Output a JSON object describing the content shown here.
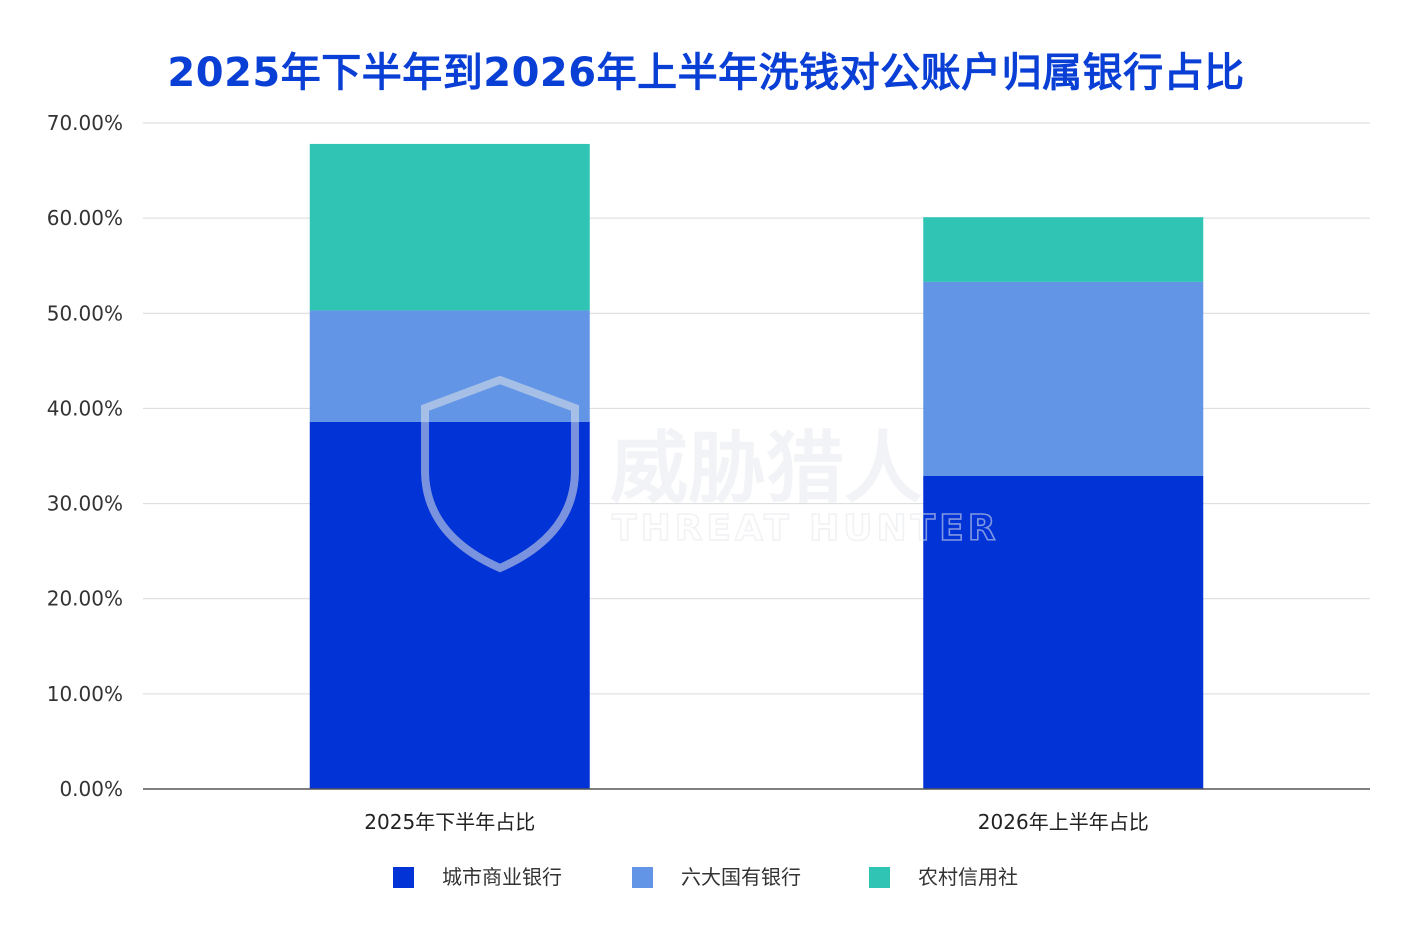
{
  "chart_data": {
    "type": "bar",
    "stacked": true,
    "title": "2025年下半年到2026年上半年洗钱对公账户归属银行占比",
    "categories": [
      "2025年下半年占比",
      "2026年上半年占比"
    ],
    "series": [
      {
        "name": "城市商业银行",
        "color": "#0133d6",
        "values": [
          38.6,
          32.9
        ]
      },
      {
        "name": "六大国有银行",
        "color": "#6295e6",
        "values": [
          11.7,
          20.4
        ]
      },
      {
        "name": "农村信用社",
        "color": "#2fc4b3",
        "values": [
          17.5,
          6.8
        ]
      }
    ],
    "yticks": [
      "0.00%",
      "10.00%",
      "20.00%",
      "30.00%",
      "40.00%",
      "50.00%",
      "60.00%",
      "70.00%"
    ],
    "ylim": [
      0,
      70
    ],
    "grid": true,
    "legend": "bottom"
  },
  "watermark": {
    "cn": "威胁猎人",
    "en": "THREAT HUNTER"
  }
}
